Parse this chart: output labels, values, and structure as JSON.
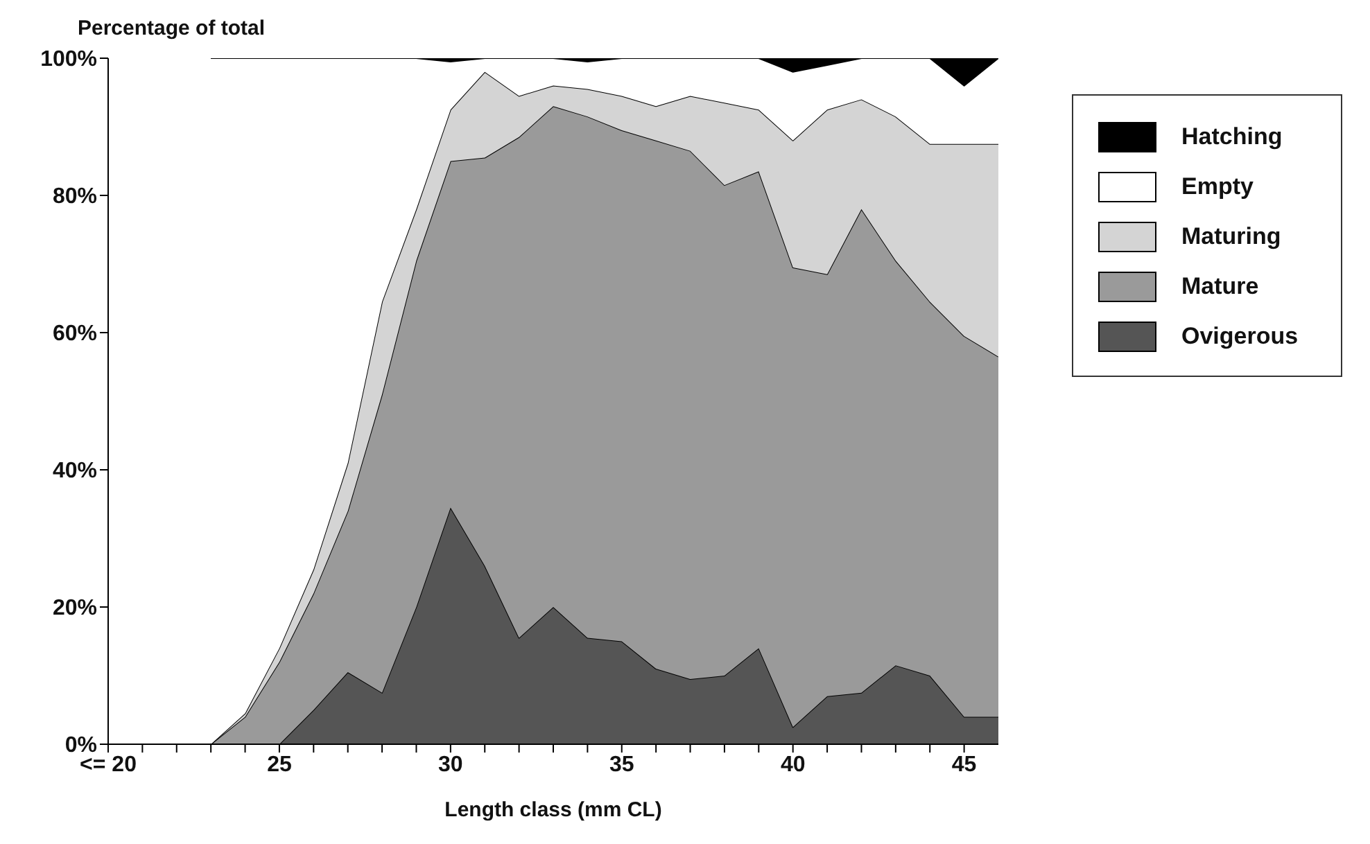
{
  "chart_data": {
    "type": "area",
    "stacked": true,
    "ylabel": "Percentage of total",
    "xlabel": "Length class (mm CL)",
    "x": [
      23,
      24,
      25,
      26,
      27,
      28,
      29,
      30,
      31,
      32,
      33,
      34,
      35,
      36,
      37,
      38,
      39,
      40,
      41,
      42,
      43,
      44,
      45,
      46
    ],
    "series": [
      {
        "name": "Ovigerous",
        "color": "#555555",
        "values": [
          0,
          0,
          0,
          5,
          10.5,
          7.5,
          20,
          34.5,
          26,
          15.5,
          20,
          15.5,
          15,
          11,
          9.5,
          10,
          14,
          2.5,
          7,
          7.5,
          11.5,
          10,
          4,
          4
        ]
      },
      {
        "name": "Mature",
        "color": "#9a9a9a",
        "values": [
          0,
          4,
          12,
          17,
          23.5,
          43.5,
          50.5,
          50.5,
          59.5,
          73,
          73,
          76,
          74.5,
          77,
          77,
          71.5,
          69.5,
          67,
          61.5,
          70.5,
          59,
          54.5,
          55.5,
          52.5
        ]
      },
      {
        "name": "Maturing",
        "color": "#d4d4d4",
        "values": [
          0,
          0.5,
          2,
          3.5,
          7,
          13.5,
          7.5,
          7.5,
          12.5,
          6,
          3,
          4,
          5,
          5,
          8,
          12,
          9,
          18.5,
          24,
          16,
          21,
          23,
          28,
          31
        ]
      },
      {
        "name": "Empty",
        "color": "#ffffff",
        "values": [
          100,
          95.5,
          86,
          74.5,
          59,
          35.5,
          22,
          7,
          2,
          5.5,
          4,
          4,
          5.5,
          7,
          5.5,
          6.5,
          7.5,
          10,
          6.5,
          6,
          8.5,
          12.5,
          8.5,
          12.5
        ]
      },
      {
        "name": "Hatching",
        "color": "#000000",
        "values": [
          0,
          0,
          0,
          0,
          0,
          0,
          0,
          0.5,
          0,
          0,
          0,
          0.5,
          0,
          0,
          0,
          0,
          0,
          2,
          1,
          0,
          0,
          0,
          4,
          0
        ]
      }
    ],
    "xlim": [
      20,
      46
    ],
    "xticks": [
      {
        "value": 20,
        "label": "<= 20"
      },
      {
        "value": 21,
        "label": null
      },
      {
        "value": 22,
        "label": null
      },
      {
        "value": 23,
        "label": null
      },
      {
        "value": 24,
        "label": null
      },
      25,
      {
        "value": 26,
        "label": null
      },
      {
        "value": 27,
        "label": null
      },
      {
        "value": 28,
        "label": null
      },
      {
        "value": 29,
        "label": null
      },
      30,
      {
        "value": 31,
        "label": null
      },
      {
        "value": 32,
        "label": null
      },
      {
        "value": 33,
        "label": null
      },
      {
        "value": 34,
        "label": null
      },
      35,
      {
        "value": 36,
        "label": null
      },
      {
        "value": 37,
        "label": null
      },
      {
        "value": 38,
        "label": null
      },
      {
        "value": 39,
        "label": null
      },
      40,
      {
        "value": 41,
        "label": null
      },
      {
        "value": 42,
        "label": null
      },
      {
        "value": 43,
        "label": null
      },
      {
        "value": 44,
        "label": null
      },
      45
    ],
    "ylim": [
      0,
      100
    ],
    "yticks": [
      {
        "value": 0,
        "label": "0%"
      },
      {
        "value": 20,
        "label": "20%"
      },
      {
        "value": 40,
        "label": "40%"
      },
      {
        "value": 60,
        "label": "60%"
      },
      {
        "value": 80,
        "label": "80%"
      },
      {
        "value": 100,
        "label": "100%"
      }
    ],
    "grid": false,
    "legend": "right"
  }
}
